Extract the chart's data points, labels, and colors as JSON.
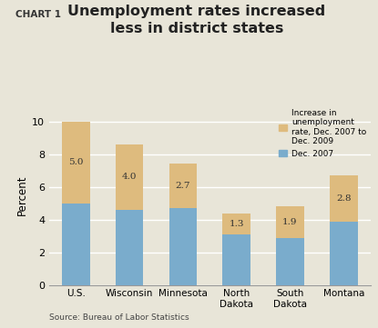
{
  "categories": [
    "U.S.",
    "Wisconsin",
    "Minnesota",
    "North\nDakota",
    "South\nDakota",
    "Montana"
  ],
  "dec2007": [
    5.0,
    4.6,
    4.7,
    3.1,
    2.9,
    3.9
  ],
  "increase": [
    5.0,
    4.0,
    2.7,
    1.3,
    1.9,
    2.8
  ],
  "increase_labels": [
    "5.0",
    "4.0",
    "2.7",
    "1.3",
    "1.9",
    "2.8"
  ],
  "blue_color": "#7aaccc",
  "tan_color": "#debb7e",
  "background_color": "#e8e5d8",
  "chart_label": "CHART 1",
  "title": "Unemployment rates increased\nless in district states",
  "ylabel": "Percent",
  "source": "Source: Bureau of Labor Statistics",
  "legend_tan": "Increase in\nunemployment\nrate, Dec. 2007 to\nDec. 2009",
  "legend_blue": "Dec. 2007",
  "ylim": [
    0,
    11
  ],
  "yticks": [
    0,
    2,
    4,
    6,
    8,
    10
  ]
}
